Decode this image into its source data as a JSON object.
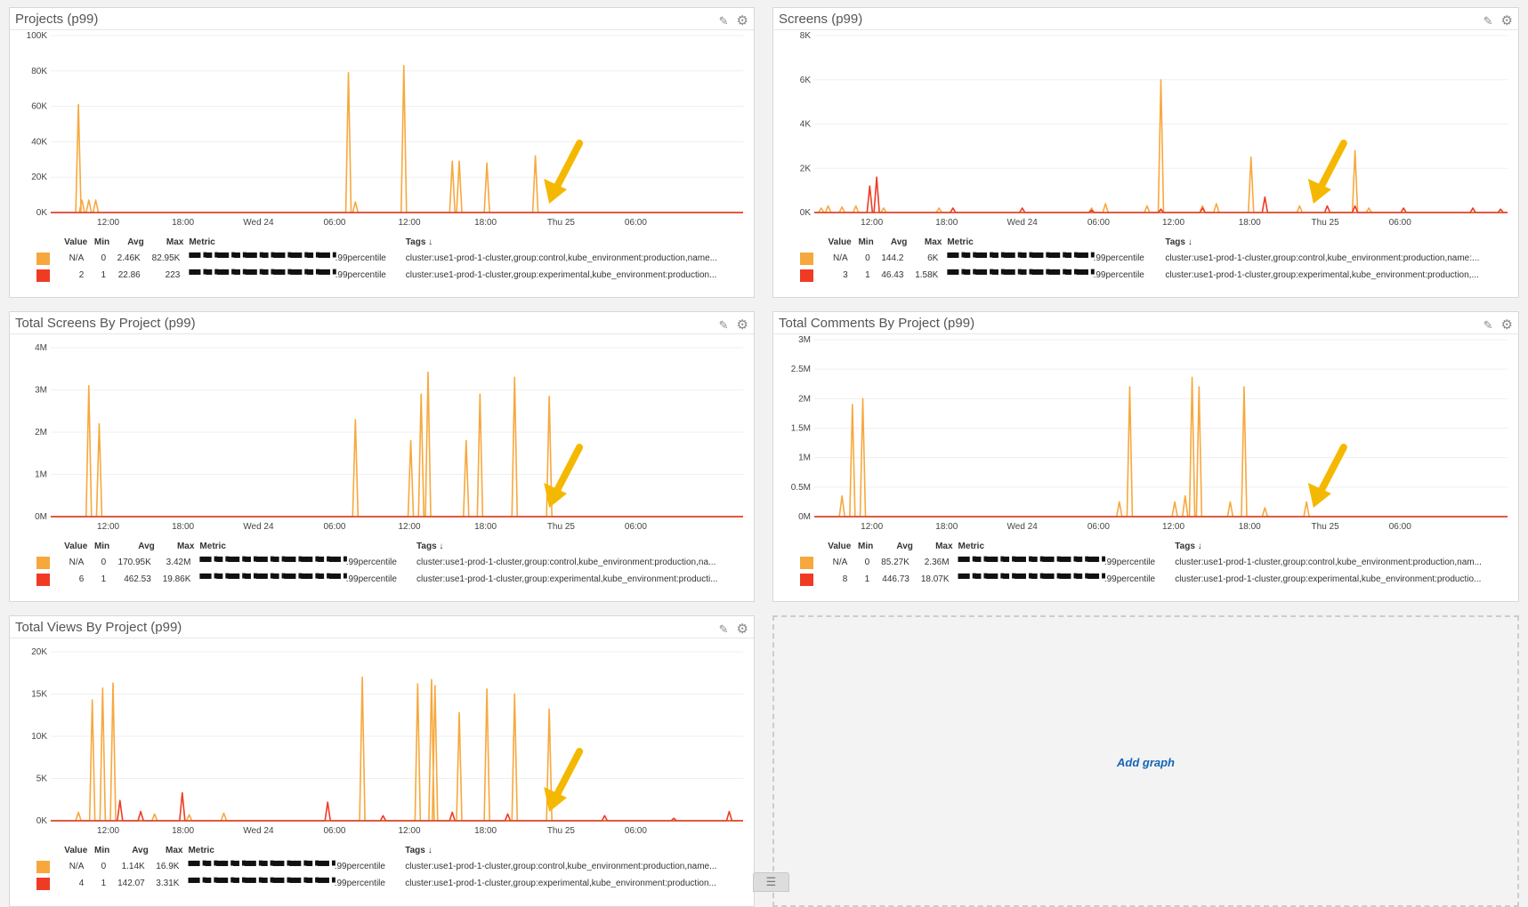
{
  "timeline_ticks": [
    "12:00",
    "18:00",
    "Wed 24",
    "06:00",
    "12:00",
    "18:00",
    "Thu 25",
    "06:00"
  ],
  "colors": {
    "orange": "#f7a83d",
    "red": "#ef3b24",
    "arrow": "#f5b800",
    "axis": "#d94a35"
  },
  "legend_headers": {
    "value": "Value",
    "min": "Min",
    "avg": "Avg",
    "max": "Max",
    "metric": "Metric",
    "tags": "Tags ↓"
  },
  "metric_redacted": "▀▀▝▀▝▀▀▝▀▝▀▀▝▀▝▀▀▝▀▀▝▀▝▀▀▝",
  "panels": [
    {
      "title": "Projects (p99)",
      "yticks": [
        "100K",
        "80K",
        "60K",
        "40K",
        "20K",
        "0K"
      ],
      "rows": [
        {
          "value": "N/A",
          "min": "0",
          "avg": "2.46K",
          "max": "82.95K",
          "metric_suffix": ".99percentile",
          "tags": "cluster:use1-prod-1-cluster,group:control,kube_environment:production,name...",
          "color": "#f7a83d"
        },
        {
          "value": "2",
          "min": "1",
          "avg": "22.86",
          "max": "223",
          "metric_suffix": ".99percentile",
          "tags": "cluster:use1-prod-1-cluster,group:experimental,kube_environment:production...",
          "color": "#ef3b24"
        }
      ]
    },
    {
      "title": "Screens (p99)",
      "yticks": [
        "8K",
        "6K",
        "4K",
        "2K",
        "0K"
      ],
      "rows": [
        {
          "value": "N/A",
          "min": "0",
          "avg": "144.2",
          "max": "6K",
          "metric_suffix": ".99percentile",
          "tags": "cluster:use1-prod-1-cluster,group:control,kube_environment:production,name:...",
          "color": "#f7a83d"
        },
        {
          "value": "3",
          "min": "1",
          "avg": "46.43",
          "max": "1.58K",
          "metric_suffix": ".99percentile",
          "tags": "cluster:use1-prod-1-cluster,group:experimental,kube_environment:production,...",
          "color": "#ef3b24"
        }
      ]
    },
    {
      "title": "Total Screens By Project (p99)",
      "yticks": [
        "4M",
        "3M",
        "2M",
        "1M",
        "0M"
      ],
      "rows": [
        {
          "value": "N/A",
          "min": "0",
          "avg": "170.95K",
          "max": "3.42M",
          "metric_suffix": ".99percentile",
          "tags": "cluster:use1-prod-1-cluster,group:control,kube_environment:production,na...",
          "color": "#f7a83d"
        },
        {
          "value": "6",
          "min": "1",
          "avg": "462.53",
          "max": "19.86K",
          "metric_suffix": ".99percentile",
          "tags": "cluster:use1-prod-1-cluster,group:experimental,kube_environment:producti...",
          "color": "#ef3b24"
        }
      ]
    },
    {
      "title": "Total Comments By Project (p99)",
      "yticks": [
        "3M",
        "2.5M",
        "2M",
        "1.5M",
        "1M",
        "0.5M",
        "0M"
      ],
      "rows": [
        {
          "value": "N/A",
          "min": "0",
          "avg": "85.27K",
          "max": "2.36M",
          "metric_suffix": ".99percentile",
          "tags": "cluster:use1-prod-1-cluster,group:control,kube_environment:production,nam...",
          "color": "#f7a83d"
        },
        {
          "value": "8",
          "min": "1",
          "avg": "446.73",
          "max": "18.07K",
          "metric_suffix": ".99percentile",
          "tags": "cluster:use1-prod-1-cluster,group:experimental,kube_environment:productio...",
          "color": "#ef3b24"
        }
      ]
    },
    {
      "title": "Total Views By Project (p99)",
      "yticks": [
        "20K",
        "15K",
        "10K",
        "5K",
        "0K"
      ],
      "rows": [
        {
          "value": "N/A",
          "min": "0",
          "avg": "1.14K",
          "max": "16.9K",
          "metric_suffix": ".99percentile",
          "tags": "cluster:use1-prod-1-cluster,group:control,kube_environment:production,name...",
          "color": "#f7a83d"
        },
        {
          "value": "4",
          "min": "1",
          "avg": "142.07",
          "max": "3.31K",
          "metric_suffix": ".99percentile",
          "tags": "cluster:use1-prod-1-cluster,group:experimental,kube_environment:production...",
          "color": "#ef3b24"
        }
      ]
    }
  ],
  "add_graph_label": "Add graph",
  "chart_data": [
    {
      "type": "line",
      "title": "Projects (p99)",
      "ylim": [
        0,
        100000
      ],
      "x_ticks": [
        "12:00",
        "18:00",
        "Wed 24",
        "06:00",
        "12:00",
        "18:00",
        "Thu 25",
        "06:00"
      ],
      "series": [
        {
          "name": "",
          "spikes": [
            [
              0.04,
              61000
            ],
            [
              0.045,
              7000
            ],
            [
              0.055,
              7000
            ],
            [
              0.065,
              7000
            ],
            [
              0.43,
              79000
            ],
            [
              0.44,
              6000
            ],
            [
              0.51,
              83000
            ],
            [
              0.58,
              29000
            ],
            [
              0.59,
              29000
            ],
            [
              0.63,
              28000
            ],
            [
              0.7,
              32000
            ]
          ]
        },
        {
          "name": "",
          "spikes": []
        }
      ]
    },
    {
      "type": "line",
      "title": "Screens (p99)",
      "ylim": [
        0,
        8000
      ],
      "x_ticks": [
        "12:00",
        "18:00",
        "Wed 24",
        "06:00",
        "12:00",
        "18:00",
        "Thu 25",
        "06:00"
      ],
      "series": [
        {
          "name": "",
          "spikes": [
            [
              0.01,
              200
            ],
            [
              0.02,
              300
            ],
            [
              0.04,
              250
            ],
            [
              0.06,
              300
            ],
            [
              0.1,
              200
            ],
            [
              0.18,
              200
            ],
            [
              0.4,
              200
            ],
            [
              0.42,
              400
            ],
            [
              0.48,
              300
            ],
            [
              0.5,
              6000
            ],
            [
              0.56,
              300
            ],
            [
              0.58,
              400
            ],
            [
              0.63,
              2500
            ],
            [
              0.7,
              300
            ],
            [
              0.78,
              2800
            ],
            [
              0.8,
              200
            ]
          ]
        },
        {
          "name": "",
          "spikes": [
            [
              0.08,
              1200
            ],
            [
              0.09,
              1600
            ],
            [
              0.2,
              200
            ],
            [
              0.3,
              200
            ],
            [
              0.4,
              100
            ],
            [
              0.5,
              150
            ],
            [
              0.56,
              200
            ],
            [
              0.65,
              700
            ],
            [
              0.74,
              300
            ],
            [
              0.78,
              300
            ],
            [
              0.85,
              200
            ],
            [
              0.95,
              200
            ],
            [
              0.99,
              150
            ]
          ]
        }
      ]
    },
    {
      "type": "line",
      "title": "Total Screens By Project (p99)",
      "ylim": [
        0,
        4000000
      ],
      "x_ticks": [
        "12:00",
        "18:00",
        "Wed 24",
        "06:00",
        "12:00",
        "18:00",
        "Thu 25",
        "06:00"
      ],
      "series": [
        {
          "name": "",
          "spikes": [
            [
              0.055,
              3100000
            ],
            [
              0.07,
              2200000
            ],
            [
              0.44,
              2300000
            ],
            [
              0.52,
              1800000
            ],
            [
              0.535,
              2900000
            ],
            [
              0.545,
              3420000
            ],
            [
              0.6,
              1800000
            ],
            [
              0.62,
              2900000
            ],
            [
              0.67,
              3300000
            ],
            [
              0.72,
              2850000
            ]
          ]
        },
        {
          "name": "",
          "spikes": []
        }
      ]
    },
    {
      "type": "line",
      "title": "Total Comments By Project (p99)",
      "ylim": [
        0,
        3000000
      ],
      "x_ticks": [
        "12:00",
        "18:00",
        "Wed 24",
        "06:00",
        "12:00",
        "18:00",
        "Thu 25",
        "06:00"
      ],
      "series": [
        {
          "name": "",
          "spikes": [
            [
              0.04,
              350000
            ],
            [
              0.055,
              1900000
            ],
            [
              0.07,
              2000000
            ],
            [
              0.44,
              250000
            ],
            [
              0.455,
              2200000
            ],
            [
              0.52,
              250000
            ],
            [
              0.535,
              350000
            ],
            [
              0.545,
              2360000
            ],
            [
              0.555,
              2200000
            ],
            [
              0.6,
              250000
            ],
            [
              0.62,
              2200000
            ],
            [
              0.65,
              150000
            ],
            [
              0.71,
              250000
            ]
          ]
        },
        {
          "name": "",
          "spikes": []
        }
      ]
    },
    {
      "type": "line",
      "title": "Total Views By Project (p99)",
      "ylim": [
        0,
        20000
      ],
      "x_ticks": [
        "12:00",
        "18:00",
        "Wed 24",
        "06:00",
        "12:00",
        "18:00",
        "Thu 25",
        "06:00"
      ],
      "series": [
        {
          "name": "",
          "spikes": [
            [
              0.04,
              1000
            ],
            [
              0.06,
              14300
            ],
            [
              0.075,
              15700
            ],
            [
              0.09,
              16300
            ],
            [
              0.15,
              800
            ],
            [
              0.2,
              700
            ],
            [
              0.25,
              900
            ],
            [
              0.45,
              17000
            ],
            [
              0.53,
              16200
            ],
            [
              0.55,
              16700
            ],
            [
              0.555,
              16000
            ],
            [
              0.59,
              12800
            ],
            [
              0.63,
              15600
            ],
            [
              0.67,
              15000
            ],
            [
              0.72,
              13200
            ]
          ]
        },
        {
          "name": "",
          "spikes": [
            [
              0.1,
              2400
            ],
            [
              0.13,
              1100
            ],
            [
              0.19,
              3310
            ],
            [
              0.4,
              2200
            ],
            [
              0.48,
              600
            ],
            [
              0.58,
              1000
            ],
            [
              0.66,
              800
            ],
            [
              0.8,
              600
            ],
            [
              0.9,
              300
            ],
            [
              0.98,
              1100
            ]
          ]
        }
      ]
    }
  ]
}
